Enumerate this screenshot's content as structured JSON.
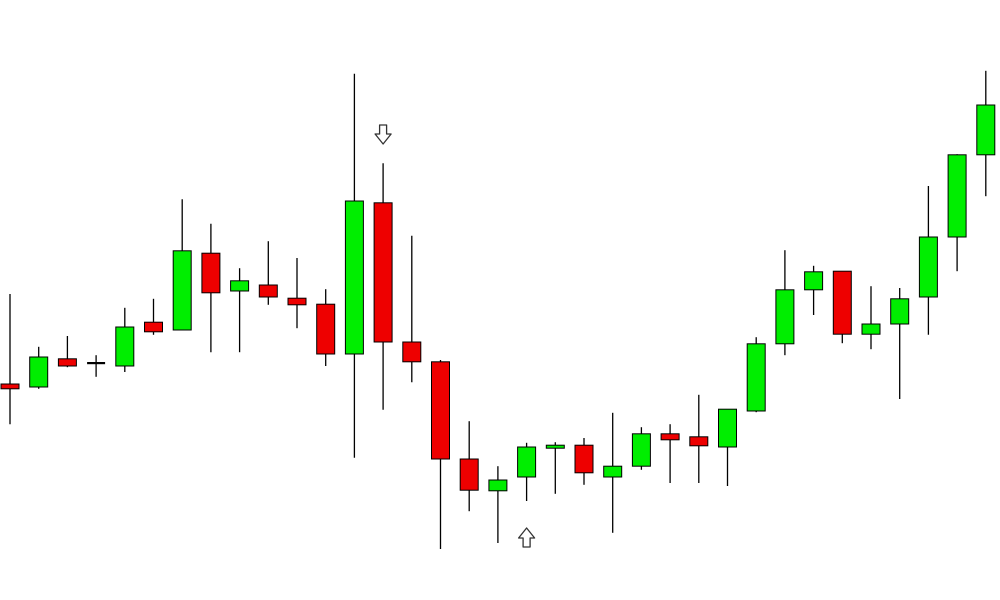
{
  "chart_data": {
    "type": "candlestick",
    "title": "",
    "xlabel": "",
    "ylabel": "",
    "grid": false,
    "legend": "none",
    "ylim": [
      0,
      100
    ],
    "colors": {
      "bullish": "#00ee00",
      "bearish": "#ee0000",
      "outline": "#000000",
      "background": "#ffffff",
      "arrow_fill": "#ffffff",
      "arrow_stroke": "#333333"
    },
    "candles": [
      {
        "open": 36.0,
        "high": 51.0,
        "low": 29.3,
        "close": 35.2
      },
      {
        "open": 35.5,
        "high": 42.2,
        "low": 35.2,
        "close": 40.5
      },
      {
        "open": 40.2,
        "high": 44.0,
        "low": 38.8,
        "close": 39.0
      },
      {
        "open": 39.5,
        "high": 40.8,
        "low": 37.2,
        "close": 39.5
      },
      {
        "open": 39.0,
        "high": 48.7,
        "low": 38.0,
        "close": 45.5
      },
      {
        "open": 46.3,
        "high": 50.2,
        "low": 44.2,
        "close": 44.7
      },
      {
        "open": 45.0,
        "high": 66.8,
        "low": 45.0,
        "close": 58.2
      },
      {
        "open": 57.8,
        "high": 62.7,
        "low": 41.3,
        "close": 51.2
      },
      {
        "open": 51.5,
        "high": 55.3,
        "low": 41.3,
        "close": 53.2
      },
      {
        "open": 52.5,
        "high": 59.8,
        "low": 49.2,
        "close": 50.5
      },
      {
        "open": 50.3,
        "high": 57.0,
        "low": 45.3,
        "close": 49.2
      },
      {
        "open": 49.3,
        "high": 51.8,
        "low": 39.0,
        "close": 41.0
      },
      {
        "open": 41.0,
        "high": 87.7,
        "low": 23.7,
        "close": 66.5
      },
      {
        "open": 66.2,
        "high": 72.8,
        "low": 31.7,
        "close": 43.0
      },
      {
        "open": 43.0,
        "high": 60.7,
        "low": 36.3,
        "close": 39.7
      },
      {
        "open": 39.7,
        "high": 40.0,
        "low": 8.5,
        "close": 23.5
      },
      {
        "open": 23.5,
        "high": 29.8,
        "low": 14.8,
        "close": 18.3
      },
      {
        "open": 18.2,
        "high": 22.3,
        "low": 9.5,
        "close": 20.0
      },
      {
        "open": 20.5,
        "high": 26.2,
        "low": 16.5,
        "close": 25.5
      },
      {
        "open": 25.3,
        "high": 26.3,
        "low": 17.7,
        "close": 25.8
      },
      {
        "open": 25.8,
        "high": 27.0,
        "low": 19.2,
        "close": 21.2
      },
      {
        "open": 20.5,
        "high": 31.2,
        "low": 11.2,
        "close": 22.3
      },
      {
        "open": 22.3,
        "high": 28.8,
        "low": 21.7,
        "close": 27.7
      },
      {
        "open": 27.7,
        "high": 29.3,
        "low": 19.5,
        "close": 26.7
      },
      {
        "open": 27.2,
        "high": 34.2,
        "low": 19.5,
        "close": 25.7
      },
      {
        "open": 25.5,
        "high": 31.8,
        "low": 19.0,
        "close": 31.8
      },
      {
        "open": 31.5,
        "high": 43.8,
        "low": 31.3,
        "close": 42.7
      },
      {
        "open": 42.7,
        "high": 58.3,
        "low": 40.8,
        "close": 51.7
      },
      {
        "open": 51.7,
        "high": 55.7,
        "low": 47.5,
        "close": 54.7
      },
      {
        "open": 54.8,
        "high": 54.8,
        "low": 42.8,
        "close": 44.3
      },
      {
        "open": 44.3,
        "high": 52.3,
        "low": 41.8,
        "close": 46.0
      },
      {
        "open": 46.0,
        "high": 52.0,
        "low": 33.5,
        "close": 50.2
      },
      {
        "open": 50.5,
        "high": 69.0,
        "low": 44.2,
        "close": 60.5
      },
      {
        "open": 60.5,
        "high": 74.3,
        "low": 54.8,
        "close": 74.2
      },
      {
        "open": 74.2,
        "high": 88.2,
        "low": 67.3,
        "close": 82.5
      }
    ],
    "annotations": [
      {
        "type": "arrow-down",
        "candle": 13,
        "price": 77.5
      },
      {
        "type": "arrow-up",
        "candle": 18,
        "price": 10.5
      }
    ]
  }
}
